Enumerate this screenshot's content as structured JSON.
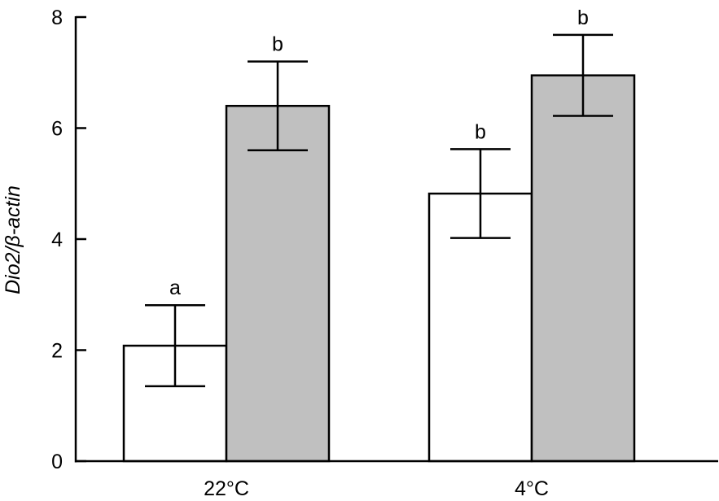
{
  "chart_data": {
    "type": "bar",
    "categories": [
      "22°C",
      "4°C"
    ],
    "series": [
      {
        "color": "#ffffff",
        "values": [
          2.08,
          4.82
        ],
        "errors": [
          0.73,
          0.8
        ],
        "labels": [
          "a",
          "b"
        ]
      },
      {
        "color": "#c0c0c0",
        "values": [
          6.4,
          6.95
        ],
        "errors": [
          0.8,
          0.73
        ],
        "labels": [
          "b",
          "b"
        ]
      }
    ],
    "xlabel": "",
    "ylabel": "Dio2/β-actin",
    "ylim": [
      0,
      8
    ],
    "yticks": [
      "0",
      "2",
      "4",
      "6",
      "8"
    ],
    "grid": false,
    "bar_edge_color": "#000000"
  }
}
